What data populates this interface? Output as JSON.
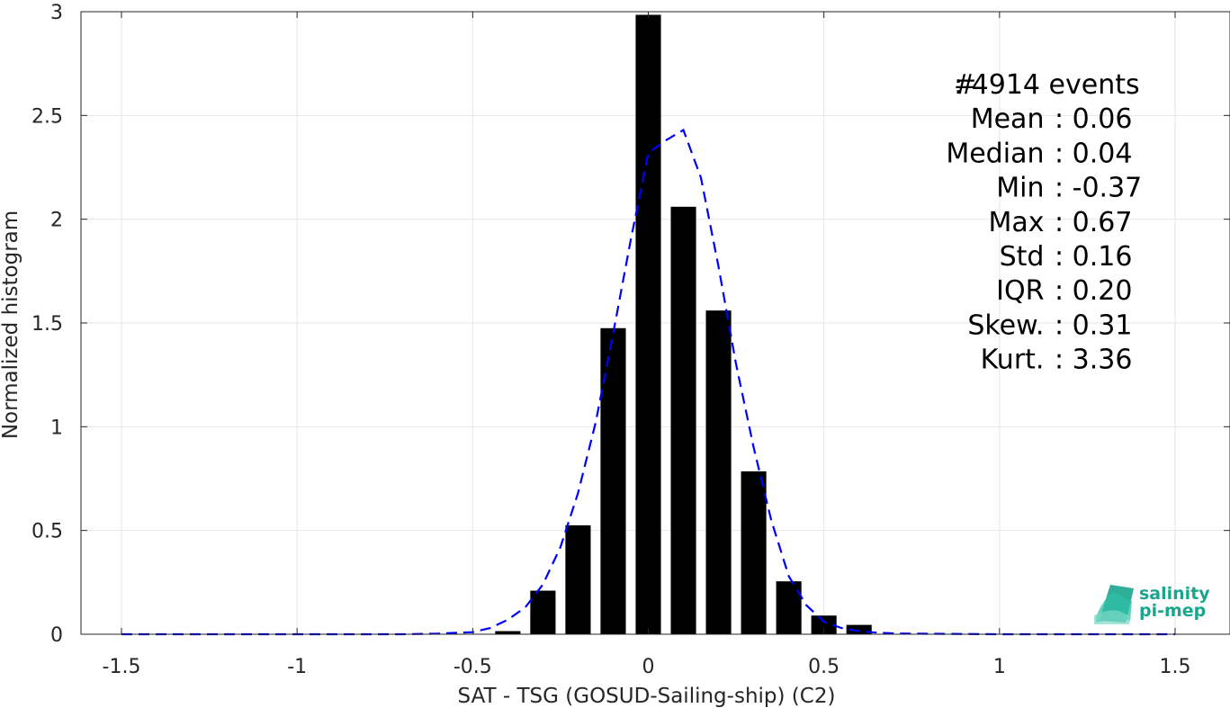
{
  "chart_data": {
    "type": "bar",
    "xlabel": "SAT - TSG (GOSUD-Sailing-ship) (C2)",
    "ylabel": "Normalized histogram",
    "xlim": [
      -1.5,
      1.5
    ],
    "ylim": [
      0,
      3
    ],
    "xticks": [
      "-1.5",
      "-1",
      "-0.5",
      "0",
      "0.5",
      "1",
      "1.5"
    ],
    "xtick_values": [
      -1.5,
      -1,
      -0.5,
      0,
      0.5,
      1,
      1.5
    ],
    "yticks": [
      "0",
      "0.5",
      "1",
      "1.5",
      "2",
      "2.5",
      "3"
    ],
    "ytick_values": [
      0,
      0.5,
      1,
      1.5,
      2,
      2.5,
      3
    ],
    "grid": true,
    "bars": {
      "centers": [
        -0.4,
        -0.3,
        -0.2,
        -0.1,
        0.0,
        0.1,
        0.2,
        0.3,
        0.4,
        0.5,
        0.6
      ],
      "values": [
        0.015,
        0.21,
        0.525,
        1.475,
        2.985,
        2.06,
        1.56,
        0.785,
        0.255,
        0.09,
        0.045
      ],
      "color": "#000000"
    },
    "fit_curve": {
      "style": "dashed",
      "color": "#0000ff",
      "x": [
        -1.5,
        -1.3,
        -1.1,
        -0.9,
        -0.7,
        -0.6,
        -0.5,
        -0.45,
        -0.4,
        -0.35,
        -0.3,
        -0.25,
        -0.2,
        -0.15,
        -0.1,
        -0.05,
        0.0,
        0.05,
        0.1,
        0.15,
        0.2,
        0.25,
        0.3,
        0.35,
        0.4,
        0.45,
        0.5,
        0.55,
        0.6,
        0.65,
        0.7,
        0.8,
        1.0,
        1.2,
        1.5
      ],
      "y": [
        0,
        0,
        0,
        0,
        0,
        0.003,
        0.01,
        0.03,
        0.07,
        0.13,
        0.24,
        0.42,
        0.68,
        1.02,
        1.45,
        1.9,
        2.32,
        2.38,
        2.43,
        2.2,
        1.77,
        1.3,
        0.9,
        0.55,
        0.28,
        0.14,
        0.06,
        0.03,
        0.015,
        0.008,
        0.004,
        0.002,
        0,
        0,
        0
      ]
    },
    "stats": [
      {
        "key": "#  ",
        "value": ": 4914 events"
      },
      {
        "key": "Mean ",
        "value": ": 0.06"
      },
      {
        "key": "Median ",
        "value": ": 0.04"
      },
      {
        "key": "Min ",
        "value": ": -0.37"
      },
      {
        "key": "Max ",
        "value": ": 0.67"
      },
      {
        "key": "Std ",
        "value": ": 0.16"
      },
      {
        "key": "IQR ",
        "value": ": 0.20"
      },
      {
        "key": "Skew. ",
        "value": ": 0.31"
      },
      {
        "key": "Kurt. ",
        "value": ": 3.36"
      }
    ]
  },
  "logo": {
    "line1": "salinity",
    "line2": "pi-mep"
  },
  "colors": {
    "grid": "#e6e6e6",
    "axis": "#262626",
    "bar": "#000000",
    "curve": "#0000ff",
    "logo": "#1aa58f"
  }
}
